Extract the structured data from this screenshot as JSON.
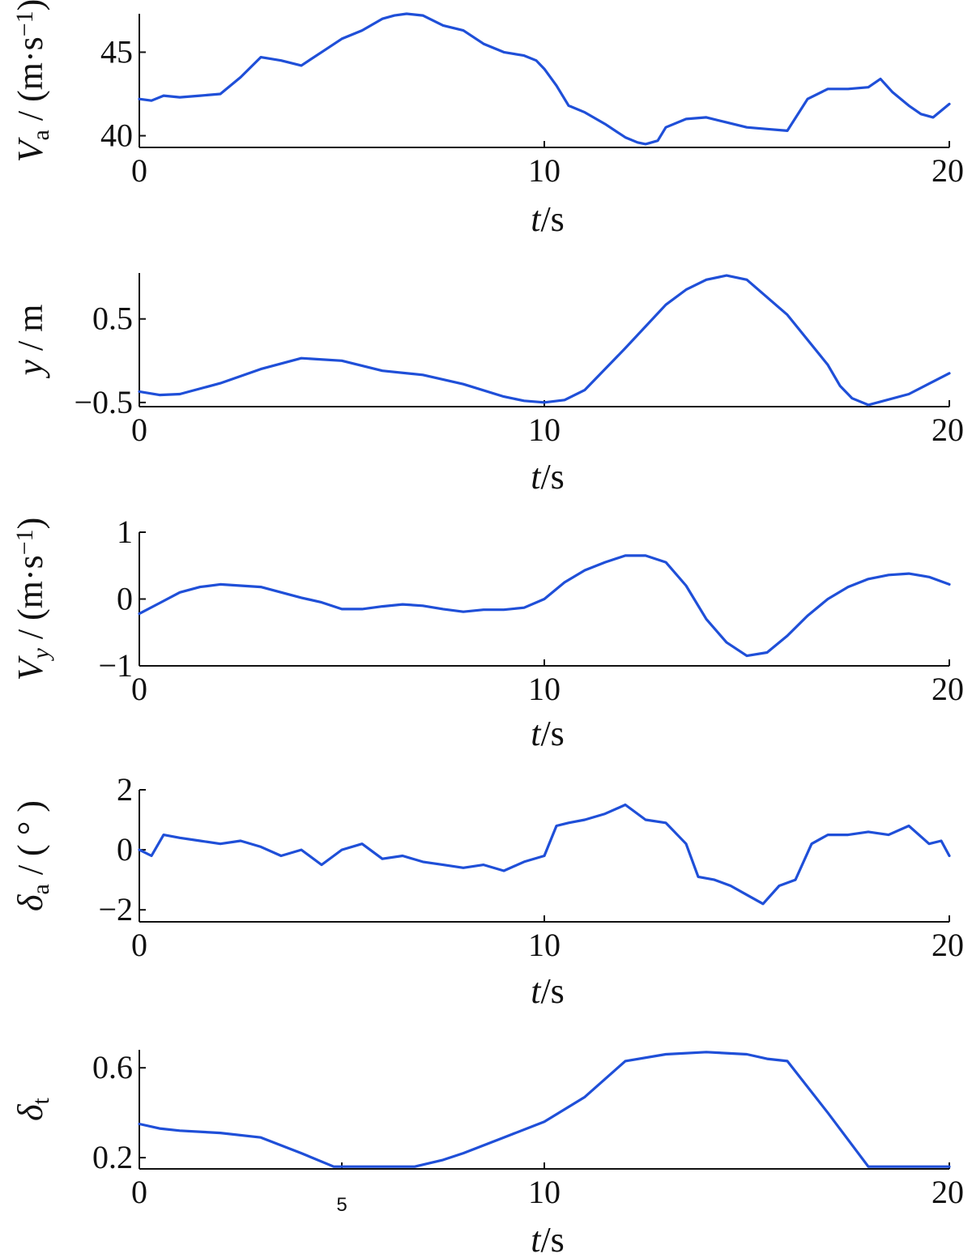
{
  "colors": {
    "series": "#1f4fd8",
    "axis": "#111111"
  },
  "chart_data": [
    {
      "type": "line",
      "xlabel": "t/s",
      "ylabel": "Va/(m·s−1)",
      "xlim": [
        0,
        20
      ],
      "ylim": [
        39.3,
        47.3
      ],
      "xticks": [
        0,
        10,
        20
      ],
      "xtick_labels": [
        "0",
        "10",
        "20"
      ],
      "yticks": [
        40,
        45
      ],
      "ytick_labels": [
        "40",
        "45"
      ],
      "grid": false,
      "series": [
        {
          "x": [
            0,
            0.3,
            0.6,
            1.0,
            1.5,
            2.0,
            2.5,
            3.0,
            3.5,
            4.0,
            4.5,
            5.0,
            5.5,
            6.0,
            6.3,
            6.6,
            7.0,
            7.5,
            8.0,
            8.5,
            9.0,
            9.5,
            9.8,
            10.0,
            10.3,
            10.6,
            11.0,
            11.5,
            12.0,
            12.3,
            12.5,
            12.8,
            13.0,
            13.5,
            14.0,
            14.5,
            15.0,
            15.5,
            16.0,
            16.5,
            17.0,
            17.5,
            18.0,
            18.3,
            18.6,
            19.0,
            19.3,
            19.6,
            20.0
          ],
          "values": [
            42.2,
            42.1,
            42.4,
            42.3,
            42.4,
            42.5,
            43.5,
            44.7,
            44.5,
            44.2,
            45.0,
            45.8,
            46.3,
            47.0,
            47.2,
            47.3,
            47.2,
            46.6,
            46.3,
            45.5,
            45.0,
            44.8,
            44.5,
            44.0,
            43.0,
            41.8,
            41.4,
            40.7,
            39.9,
            39.6,
            39.5,
            39.7,
            40.5,
            41.0,
            41.1,
            40.8,
            40.5,
            40.4,
            40.3,
            42.2,
            42.8,
            42.8,
            42.9,
            43.4,
            42.6,
            41.8,
            41.3,
            41.1,
            41.9
          ]
        }
      ]
    },
    {
      "type": "line",
      "xlabel": "t/s",
      "ylabel": "y/m",
      "xlim": [
        0,
        20
      ],
      "ylim": [
        -0.55,
        1.05
      ],
      "xticks": [
        0,
        10,
        20
      ],
      "xtick_labels": [
        "0",
        "10",
        "20"
      ],
      "yticks": [
        -0.5,
        0.5
      ],
      "ytick_labels": [
        "−0.5",
        "0.5"
      ],
      "grid": false,
      "series": [
        {
          "x": [
            0,
            0.5,
            1.0,
            2.0,
            3.0,
            4.0,
            5.0,
            6.0,
            7.0,
            8.0,
            9.0,
            9.5,
            10.0,
            10.5,
            11.0,
            12.0,
            13.0,
            13.5,
            14.0,
            14.5,
            15.0,
            16.0,
            17.0,
            17.3,
            17.6,
            18.0,
            19.0,
            20.0
          ],
          "values": [
            -0.37,
            -0.41,
            -0.4,
            -0.27,
            -0.1,
            0.03,
            0.0,
            -0.12,
            -0.17,
            -0.28,
            -0.43,
            -0.48,
            -0.5,
            -0.47,
            -0.35,
            0.15,
            0.67,
            0.85,
            0.97,
            1.02,
            0.97,
            0.55,
            -0.05,
            -0.3,
            -0.45,
            -0.53,
            -0.4,
            -0.15
          ]
        }
      ]
    },
    {
      "type": "line",
      "xlabel": "t/s",
      "ylabel": "Vy/(m·s−1)",
      "xlim": [
        0,
        20
      ],
      "ylim": [
        -1.0,
        1.0
      ],
      "xticks": [
        0,
        10,
        20
      ],
      "xtick_labels": [
        "0",
        "10",
        "20"
      ],
      "yticks": [
        -1,
        0,
        1
      ],
      "ytick_labels": [
        "−1",
        "0",
        "1"
      ],
      "grid": false,
      "series": [
        {
          "x": [
            0,
            0.5,
            1.0,
            1.5,
            2.0,
            3.0,
            4.0,
            4.5,
            5.0,
            5.5,
            6.0,
            6.5,
            7.0,
            7.5,
            8.0,
            8.5,
            9.0,
            9.5,
            10.0,
            10.5,
            11.0,
            11.5,
            12.0,
            12.5,
            13.0,
            13.5,
            14.0,
            14.5,
            15.0,
            15.5,
            16.0,
            16.5,
            17.0,
            17.5,
            18.0,
            18.5,
            19.0,
            19.5,
            20.0
          ],
          "values": [
            -0.22,
            -0.06,
            0.1,
            0.18,
            0.22,
            0.18,
            0.02,
            -0.05,
            -0.15,
            -0.15,
            -0.11,
            -0.08,
            -0.1,
            -0.15,
            -0.19,
            -0.16,
            -0.16,
            -0.13,
            0.0,
            0.25,
            0.43,
            0.55,
            0.65,
            0.65,
            0.55,
            0.2,
            -0.3,
            -0.65,
            -0.85,
            -0.8,
            -0.55,
            -0.25,
            0.0,
            0.18,
            0.3,
            0.36,
            0.38,
            0.33,
            0.22
          ]
        }
      ]
    },
    {
      "type": "line",
      "xlabel": "t/s",
      "ylabel": "δa/(°)",
      "xlim": [
        0,
        20
      ],
      "ylim": [
        -2.4,
        2.0
      ],
      "xticks": [
        0,
        10,
        20
      ],
      "xtick_labels": [
        "0",
        "10",
        "20"
      ],
      "yticks": [
        -2,
        0,
        2
      ],
      "ytick_labels": [
        "−2",
        "0",
        "2"
      ],
      "grid": false,
      "series": [
        {
          "x": [
            0,
            0.3,
            0.6,
            1.0,
            1.5,
            2.0,
            2.5,
            3.0,
            3.5,
            4.0,
            4.5,
            5.0,
            5.5,
            6.0,
            6.5,
            7.0,
            7.5,
            8.0,
            8.5,
            9.0,
            9.5,
            10.0,
            10.3,
            10.6,
            11.0,
            11.5,
            12.0,
            12.5,
            13.0,
            13.5,
            13.8,
            14.2,
            14.6,
            15.0,
            15.4,
            15.8,
            16.2,
            16.6,
            17.0,
            17.5,
            18.0,
            18.5,
            19.0,
            19.5,
            19.8,
            20.0
          ],
          "values": [
            0.0,
            -0.2,
            0.5,
            0.4,
            0.3,
            0.2,
            0.3,
            0.1,
            -0.2,
            0.0,
            -0.5,
            0.0,
            0.2,
            -0.3,
            -0.2,
            -0.4,
            -0.5,
            -0.6,
            -0.5,
            -0.7,
            -0.4,
            -0.2,
            0.8,
            0.9,
            1.0,
            1.2,
            1.5,
            1.0,
            0.9,
            0.2,
            -0.9,
            -1.0,
            -1.2,
            -1.5,
            -1.8,
            -1.2,
            -1.0,
            0.2,
            0.5,
            0.5,
            0.6,
            0.5,
            0.8,
            0.2,
            0.3,
            -0.2
          ]
        }
      ]
    },
    {
      "type": "line",
      "xlabel": "t/s",
      "ylabel": "δt",
      "xlim": [
        0,
        20
      ],
      "ylim": [
        0.15,
        0.68
      ],
      "xticks": [
        0,
        5,
        10,
        20
      ],
      "xtick_labels": [
        "0",
        "5",
        "10",
        "20"
      ],
      "yticks": [
        0.2,
        0.6
      ],
      "ytick_labels": [
        "0.2",
        "0.6"
      ],
      "grid": false,
      "series": [
        {
          "x": [
            0,
            0.5,
            1.0,
            2.0,
            3.0,
            4.0,
            4.8,
            5.5,
            6.0,
            6.8,
            7.5,
            8.0,
            9.0,
            10.0,
            11.0,
            12.0,
            13.0,
            14.0,
            15.0,
            15.5,
            16.0,
            17.0,
            18.0,
            20.0
          ],
          "values": [
            0.35,
            0.33,
            0.32,
            0.31,
            0.29,
            0.22,
            0.16,
            0.16,
            0.16,
            0.16,
            0.19,
            0.22,
            0.29,
            0.36,
            0.47,
            0.63,
            0.66,
            0.67,
            0.66,
            0.64,
            0.63,
            0.4,
            0.16,
            0.16
          ]
        }
      ]
    }
  ]
}
